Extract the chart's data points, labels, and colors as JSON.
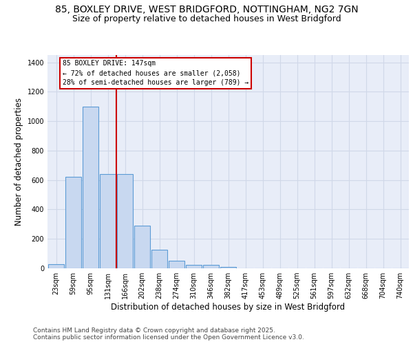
{
  "title_line1": "85, BOXLEY DRIVE, WEST BRIDGFORD, NOTTINGHAM, NG2 7GN",
  "title_line2": "Size of property relative to detached houses in West Bridgford",
  "xlabel": "Distribution of detached houses by size in West Bridgford",
  "ylabel": "Number of detached properties",
  "categories": [
    "23sqm",
    "59sqm",
    "95sqm",
    "131sqm",
    "166sqm",
    "202sqm",
    "238sqm",
    "274sqm",
    "310sqm",
    "346sqm",
    "382sqm",
    "417sqm",
    "453sqm",
    "489sqm",
    "525sqm",
    "561sqm",
    "597sqm",
    "632sqm",
    "668sqm",
    "704sqm",
    "740sqm"
  ],
  "values": [
    30,
    620,
    1100,
    640,
    640,
    290,
    125,
    50,
    25,
    25,
    10,
    0,
    0,
    0,
    0,
    0,
    0,
    0,
    0,
    0,
    0
  ],
  "bar_color": "#c8d8f0",
  "bar_edge_color": "#5b9bd5",
  "vline_color": "#cc0000",
  "annotation_text": "85 BOXLEY DRIVE: 147sqm\n← 72% of detached houses are smaller (2,058)\n28% of semi-detached houses are larger (789) →",
  "annotation_box_color": "#cc0000",
  "ylim": [
    0,
    1450
  ],
  "yticks": [
    0,
    200,
    400,
    600,
    800,
    1000,
    1200,
    1400
  ],
  "grid_color": "#d0d8e8",
  "background_color": "#e8edf8",
  "footer_text": "Contains HM Land Registry data © Crown copyright and database right 2025.\nContains public sector information licensed under the Open Government Licence v3.0.",
  "title_fontsize": 10,
  "subtitle_fontsize": 9,
  "tick_fontsize": 7,
  "label_fontsize": 8.5,
  "footer_fontsize": 6.5
}
